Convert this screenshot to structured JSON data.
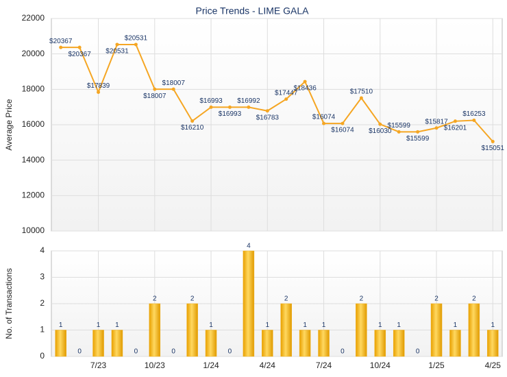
{
  "chart_data": [
    {
      "type": "line",
      "title": "Price Trends - LIME GALA",
      "y_label": "Average Price",
      "values": [
        20367,
        20367,
        17839,
        20531,
        20531,
        18007,
        18007,
        16210,
        16993,
        16993,
        16992,
        16783,
        17447,
        18436,
        16074,
        16074,
        17510,
        16030,
        15599,
        15599,
        15817,
        16201,
        16253,
        15051
      ],
      "value_labels": [
        "$20367",
        "$20367",
        "$17839",
        "$20531",
        "$20531",
        "$18007",
        "$18007",
        "$16210",
        "$16993",
        "$16993",
        "$16992",
        "$16783",
        "$17447",
        "$18436",
        "$16074",
        "$16074",
        "$17510",
        "$16030",
        "$15599",
        "$15599",
        "$15817",
        "$16201",
        "$16253",
        "$15051"
      ],
      "color": "#f5a623",
      "ylim": [
        10000,
        22000
      ],
      "yticks": [
        10000,
        12000,
        14000,
        16000,
        18000,
        20000,
        22000
      ],
      "grid": true
    },
    {
      "type": "bar",
      "y_label": "No. of Transactions",
      "categories": [
        null,
        null,
        "7/23",
        null,
        null,
        "10/23",
        null,
        null,
        "1/24",
        null,
        null,
        "4/24",
        null,
        null,
        "7/24",
        null,
        null,
        "10/24",
        null,
        null,
        "1/25",
        null,
        null,
        "4/25"
      ],
      "values": [
        1,
        0,
        1,
        1,
        0,
        2,
        0,
        2,
        1,
        0,
        4,
        1,
        2,
        1,
        1,
        0,
        2,
        1,
        1,
        0,
        2,
        1,
        2,
        1
      ],
      "color": "#f0b020",
      "ylim": [
        0,
        4
      ],
      "yticks": [
        0,
        1,
        2,
        3,
        4
      ],
      "grid": true
    }
  ]
}
